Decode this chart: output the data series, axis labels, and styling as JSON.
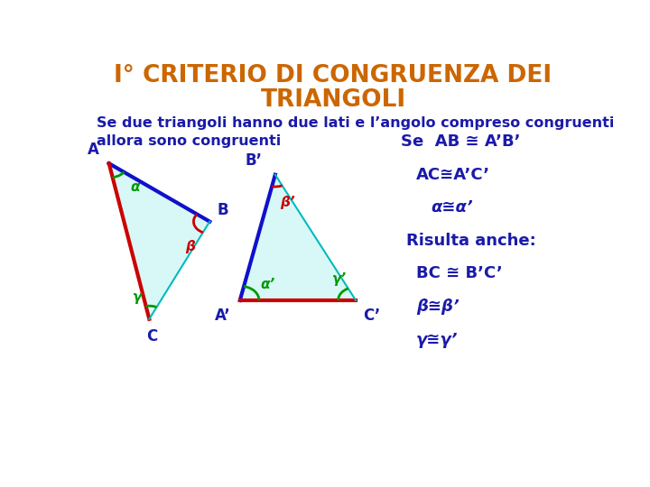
{
  "title_line1": "I° CRITERIO DI CONGRUENZA DEI",
  "title_line2": "TRIANGOLI",
  "title_color": "#CC6600",
  "subtitle": "Se due triangoli hanno due lati e l’angolo compreso congruenti\nallora sono congruenti",
  "subtitle_color": "#1a1aaa",
  "bg_color": "#FFFFFF",
  "tri1": {
    "A": [
      0.055,
      0.72
    ],
    "B": [
      0.255,
      0.565
    ],
    "C": [
      0.135,
      0.305
    ],
    "fill": "#D8F8F8",
    "label_A": "A",
    "label_B": "B",
    "label_C": "C",
    "side_AB_color": "#1010CC",
    "side_AC_color": "#CC0000",
    "side_BC_color": "#00BBBB",
    "alpha_color": "#009900",
    "beta_color": "#CC0000",
    "gamma_color": "#009900",
    "alpha_label": "α",
    "beta_label": "β",
    "gamma_label": "γ"
  },
  "tri2": {
    "Ap": [
      0.315,
      0.355
    ],
    "Bp": [
      0.385,
      0.69
    ],
    "Cp": [
      0.545,
      0.355
    ],
    "fill": "#D8F8F8",
    "label_Ap": "A’",
    "label_Bp": "B’",
    "label_Cp": "C’",
    "side_ApBp_color": "#1010CC",
    "side_ApCp_color": "#CC0000",
    "side_BpCp_color": "#00BBBB",
    "alpha_color": "#009900",
    "beta_color": "#CC0000",
    "gamma_color": "#009900",
    "alpha_label": "α’",
    "beta_label": "β’",
    "gamma_label": "γ’"
  },
  "text_color": "#1a1aaa",
  "right_texts": [
    "Se  AB ≅ A’B’",
    "AC≅A’C’",
    "α≅α’",
    "Risulta anche:",
    "BC ≅ B’C’",
    "β≅β’",
    "γ≅γ’"
  ],
  "font_size_title": 19,
  "font_size_subtitle": 11.5,
  "font_size_labels": 12,
  "font_size_angles": 11,
  "font_size_right": 13
}
